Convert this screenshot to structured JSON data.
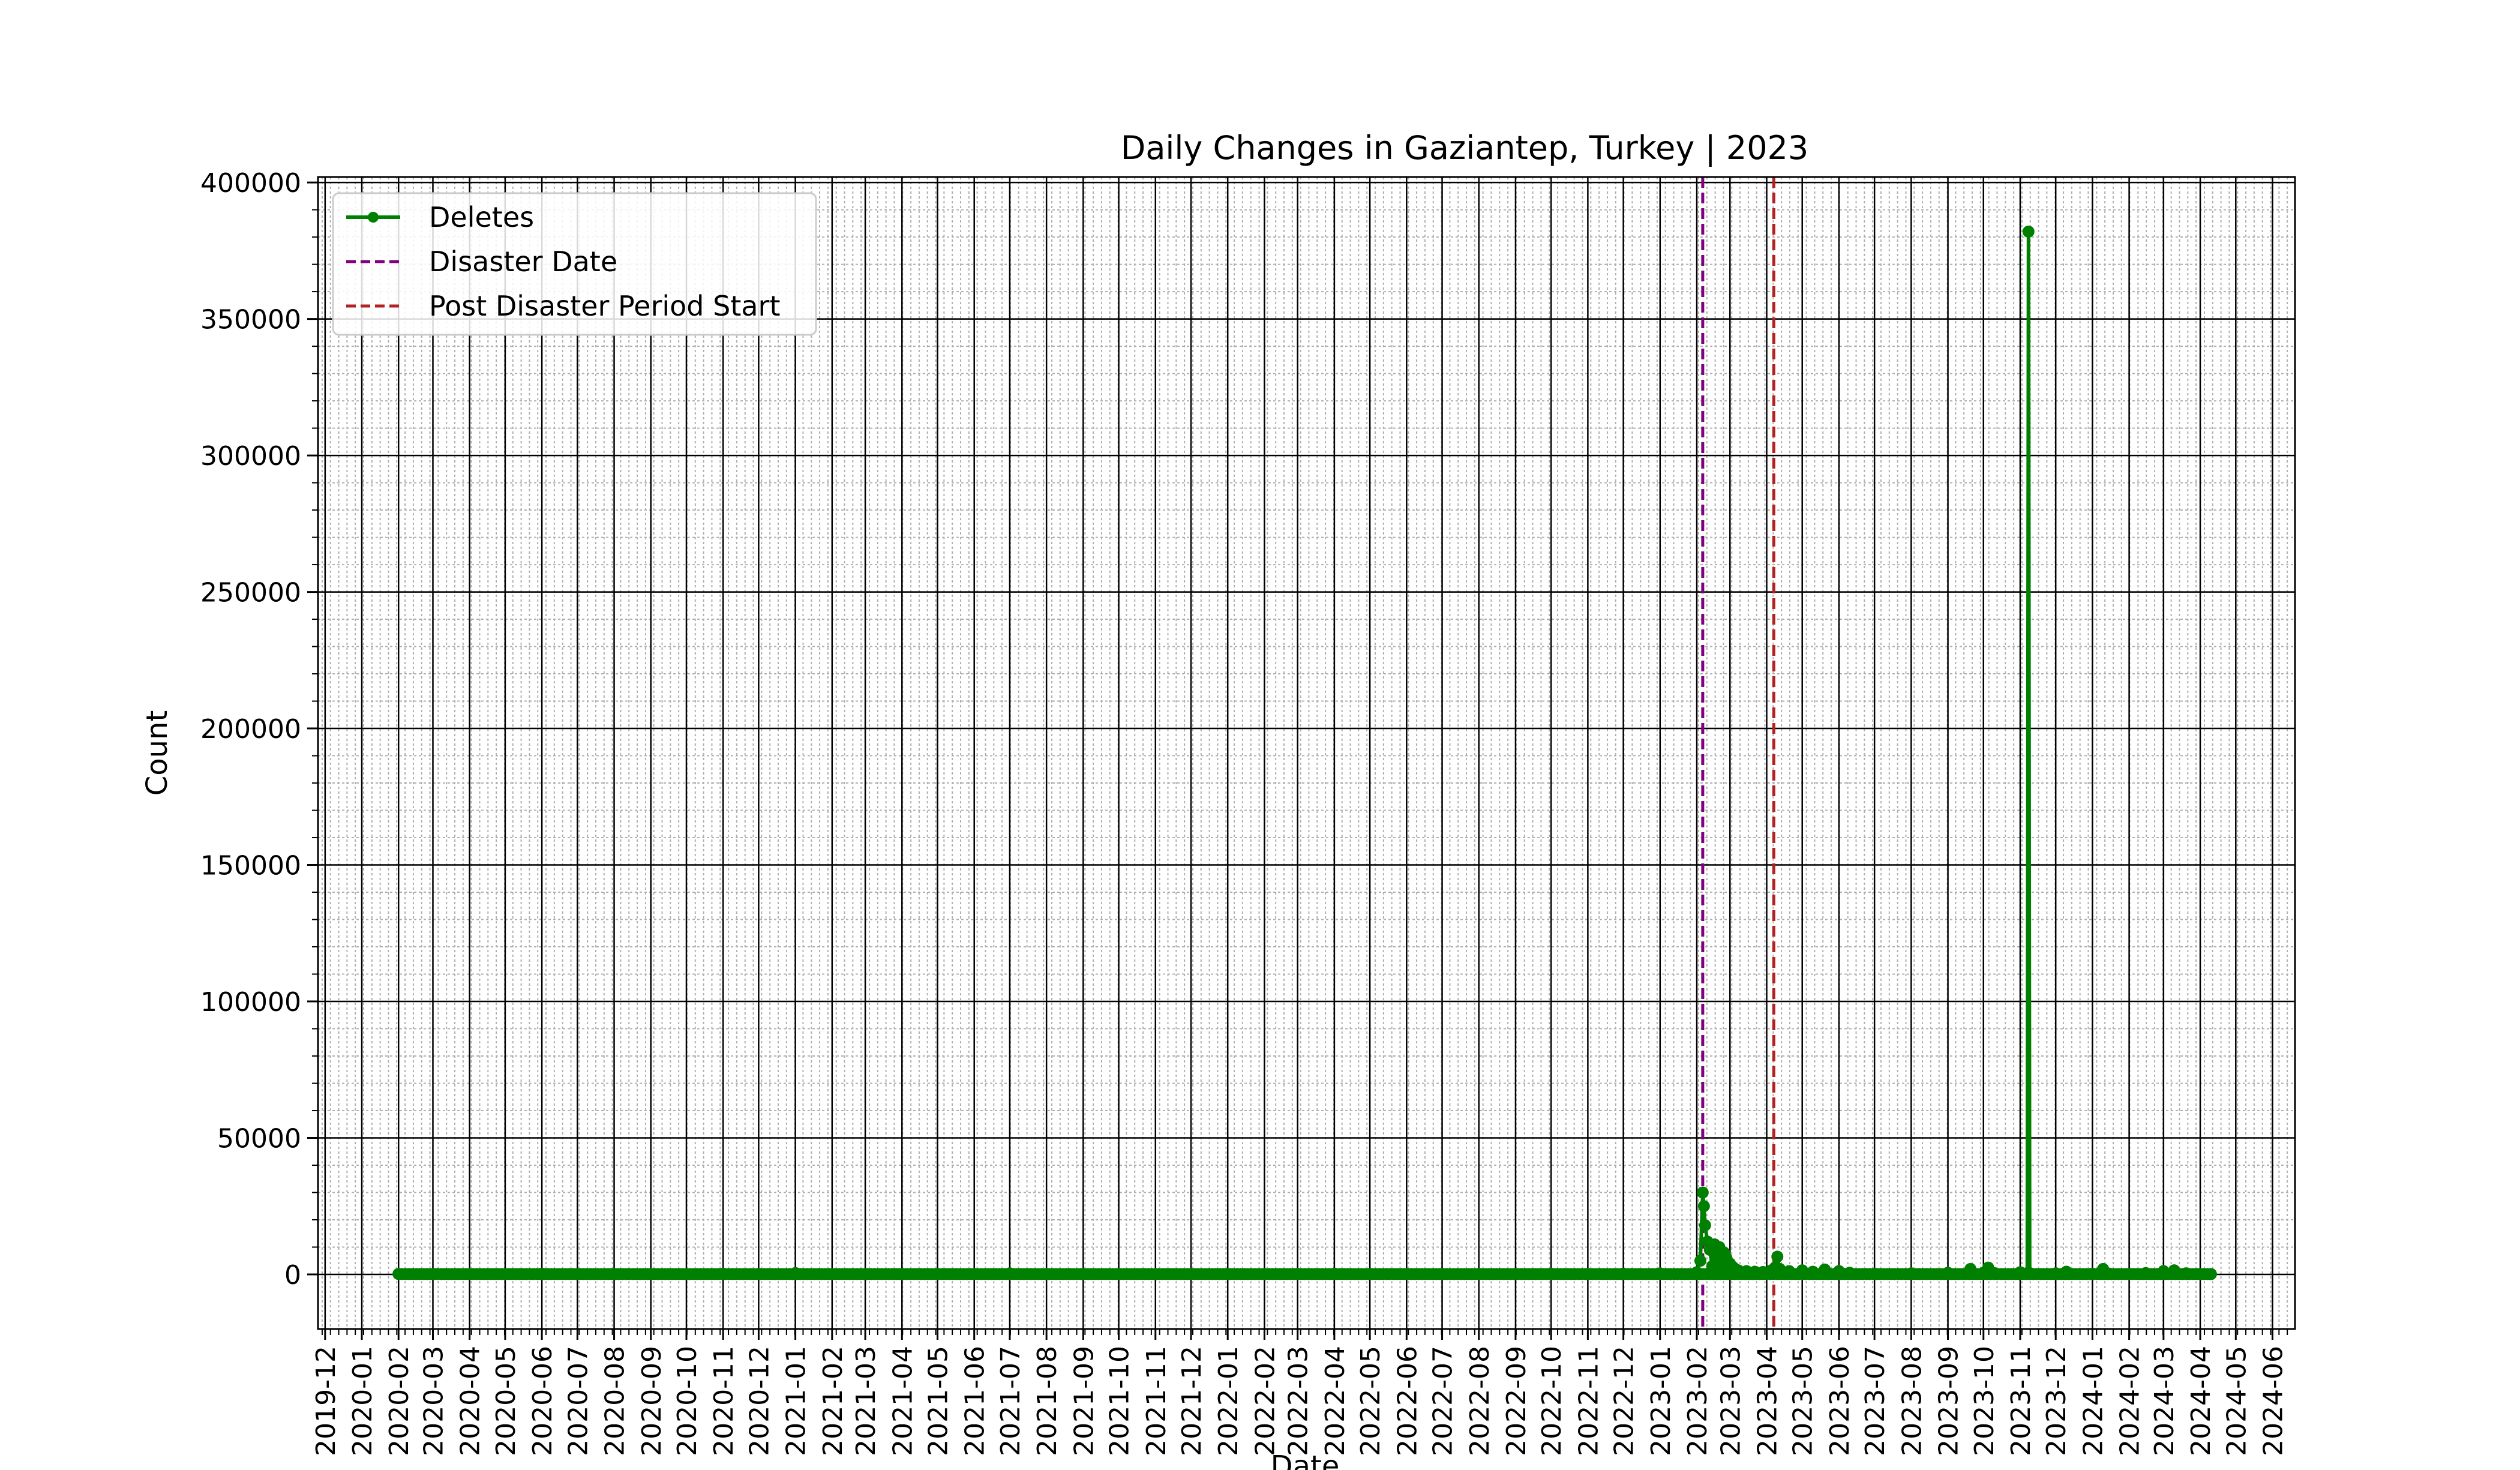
{
  "chart_data": {
    "type": "line",
    "title": "Daily Changes in Gaziantep, Turkey | 2023",
    "xlabel": "Date",
    "ylabel": "Count",
    "grid": true,
    "grid_minor": true,
    "legend_position": "upper-left",
    "xlim": [
      "2019-11-25",
      "2024-06-20"
    ],
    "ylim": [
      -20000,
      402000
    ],
    "x_ticks": [
      "2019-12",
      "2020-01",
      "2020-02",
      "2020-03",
      "2020-04",
      "2020-05",
      "2020-06",
      "2020-07",
      "2020-08",
      "2020-09",
      "2020-10",
      "2020-11",
      "2020-12",
      "2021-01",
      "2021-02",
      "2021-03",
      "2021-04",
      "2021-05",
      "2021-06",
      "2021-07",
      "2021-08",
      "2021-09",
      "2021-10",
      "2021-11",
      "2021-12",
      "2022-01",
      "2022-02",
      "2022-03",
      "2022-04",
      "2022-05",
      "2022-06",
      "2022-07",
      "2022-08",
      "2022-09",
      "2022-10",
      "2022-11",
      "2022-12",
      "2023-01",
      "2023-02",
      "2023-03",
      "2023-04",
      "2023-05",
      "2023-06",
      "2023-07",
      "2023-08",
      "2023-09",
      "2023-10",
      "2023-11",
      "2023-12",
      "2024-01",
      "2024-02",
      "2024-03",
      "2024-04",
      "2024-05",
      "2024-06"
    ],
    "y_ticks": [
      0,
      50000,
      100000,
      150000,
      200000,
      250000,
      300000,
      350000,
      400000
    ],
    "series": [
      {
        "name": "Deletes",
        "color": "#008000",
        "marker": "circle",
        "points": [
          [
            "2020-02-01",
            200
          ],
          [
            "2020-03-01",
            150
          ],
          [
            "2020-04-01",
            100
          ],
          [
            "2020-05-01",
            150
          ],
          [
            "2020-06-01",
            300
          ],
          [
            "2020-07-01",
            150
          ],
          [
            "2020-08-01",
            200
          ],
          [
            "2020-09-01",
            150
          ],
          [
            "2020-10-01",
            100
          ],
          [
            "2020-11-01",
            300
          ],
          [
            "2020-12-01",
            150
          ],
          [
            "2021-01-01",
            500
          ],
          [
            "2021-02-01",
            150
          ],
          [
            "2021-03-01",
            100
          ],
          [
            "2021-04-01",
            150
          ],
          [
            "2021-05-01",
            200
          ],
          [
            "2021-06-01",
            150
          ],
          [
            "2021-07-01",
            400
          ],
          [
            "2021-08-01",
            150
          ],
          [
            "2021-09-01",
            200
          ],
          [
            "2021-10-01",
            150
          ],
          [
            "2021-11-01",
            100
          ],
          [
            "2021-12-01",
            150
          ],
          [
            "2022-01-01",
            200
          ],
          [
            "2022-02-01",
            150
          ],
          [
            "2022-03-01",
            200
          ],
          [
            "2022-04-01",
            300
          ],
          [
            "2022-05-01",
            150
          ],
          [
            "2022-06-01",
            200
          ],
          [
            "2022-07-01",
            150
          ],
          [
            "2022-08-01",
            200
          ],
          [
            "2022-09-01",
            150
          ],
          [
            "2022-10-01",
            300
          ],
          [
            "2022-11-01",
            200
          ],
          [
            "2022-12-01",
            300
          ],
          [
            "2023-01-01",
            400
          ],
          [
            "2023-02-01",
            800
          ],
          [
            "2023-02-04",
            5000
          ],
          [
            "2023-02-06",
            30000
          ],
          [
            "2023-02-07",
            25000
          ],
          [
            "2023-02-08",
            18000
          ],
          [
            "2023-02-10",
            12000
          ],
          [
            "2023-02-12",
            9000
          ],
          [
            "2023-02-14",
            3000
          ],
          [
            "2023-02-16",
            11000
          ],
          [
            "2023-02-18",
            4000
          ],
          [
            "2023-02-20",
            10000
          ],
          [
            "2023-02-22",
            3500
          ],
          [
            "2023-02-24",
            8000
          ],
          [
            "2023-02-26",
            6000
          ],
          [
            "2023-03-01",
            4000
          ],
          [
            "2023-03-04",
            2500
          ],
          [
            "2023-03-08",
            1500
          ],
          [
            "2023-03-15",
            1200
          ],
          [
            "2023-03-22",
            1000
          ],
          [
            "2023-03-29",
            900
          ],
          [
            "2023-04-05",
            1500
          ],
          [
            "2023-04-08",
            2500
          ],
          [
            "2023-04-10",
            6500
          ],
          [
            "2023-04-12",
            2000
          ],
          [
            "2023-04-20",
            1200
          ],
          [
            "2023-05-01",
            1500
          ],
          [
            "2023-05-10",
            1000
          ],
          [
            "2023-05-20",
            1800
          ],
          [
            "2023-06-01",
            1200
          ],
          [
            "2023-06-10",
            600
          ],
          [
            "2023-07-01",
            300
          ],
          [
            "2023-08-01",
            400
          ],
          [
            "2023-09-01",
            600
          ],
          [
            "2023-09-20",
            2000
          ],
          [
            "2023-10-01",
            600
          ],
          [
            "2023-10-05",
            2500
          ],
          [
            "2023-10-10",
            500
          ],
          [
            "2023-11-01",
            800
          ],
          [
            "2023-11-07",
            500
          ],
          [
            "2023-11-08",
            382000
          ],
          [
            "2023-11-09",
            500
          ],
          [
            "2023-12-01",
            400
          ],
          [
            "2023-12-10",
            1000
          ],
          [
            "2024-01-01",
            300
          ],
          [
            "2024-01-10",
            2000
          ],
          [
            "2024-01-15",
            300
          ],
          [
            "2024-02-01",
            200
          ],
          [
            "2024-02-15",
            500
          ],
          [
            "2024-03-01",
            1200
          ],
          [
            "2024-03-10",
            1500
          ],
          [
            "2024-03-20",
            400
          ],
          [
            "2024-04-01",
            200
          ],
          [
            "2024-04-10",
            100
          ]
        ]
      },
      {
        "name": "Disaster Date",
        "color": "#800080",
        "style": "dashed-vertical",
        "x": "2023-02-06"
      },
      {
        "name": "Post Disaster Period Start",
        "color": "#b22222",
        "style": "dashed-vertical",
        "x": "2023-04-07"
      }
    ]
  }
}
